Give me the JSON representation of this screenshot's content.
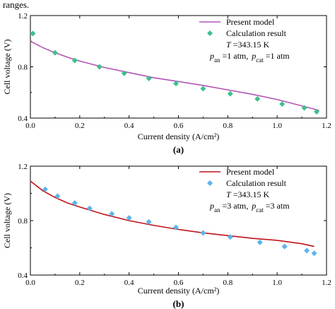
{
  "header_fragment": "ranges.",
  "chart_data": [
    {
      "type": "line",
      "panel_label": "(a)",
      "xlabel": "Current density (A/cm²)",
      "ylabel": "Cell voltage (V)",
      "xlim": [
        0.0,
        1.2
      ],
      "ylim": [
        0.4,
        1.2
      ],
      "x_ticks": [
        0.0,
        0.2,
        0.4,
        0.6,
        0.8,
        1.0,
        1.2
      ],
      "y_ticks": [
        0.4,
        0.8,
        1.2
      ],
      "x_tick_labels": [
        "0.0",
        "0.2",
        "0.4",
        "0.6",
        "0.8",
        "1.0",
        "1.2"
      ],
      "y_tick_labels": [
        "0.4",
        "0.8",
        "1.2"
      ],
      "legend_position": "top-right",
      "legend_text": {
        "line": "Present model",
        "markers": "Calculation result",
        "temp_var": "T",
        "temp_val": " =343.15 K",
        "p_an": "an",
        "p_an_val": " =1 atm,",
        "p_cat": "cat",
        "p_cat_val": " =1 atm",
        "p_var": "p"
      },
      "series": [
        {
          "name": "Present model",
          "kind": "line",
          "color": "#b455b6",
          "x": [
            0.0,
            0.05,
            0.1,
            0.15,
            0.2,
            0.3,
            0.4,
            0.5,
            0.6,
            0.7,
            0.8,
            0.9,
            1.0,
            1.1,
            1.17
          ],
          "y": [
            1.0,
            0.95,
            0.91,
            0.875,
            0.845,
            0.795,
            0.755,
            0.715,
            0.685,
            0.655,
            0.62,
            0.585,
            0.545,
            0.495,
            0.46
          ]
        },
        {
          "name": "Calculation result",
          "kind": "marker",
          "color": "#3dc08c",
          "x": [
            0.01,
            0.1,
            0.18,
            0.28,
            0.38,
            0.48,
            0.59,
            0.7,
            0.81,
            0.92,
            1.02,
            1.11,
            1.16
          ],
          "y": [
            1.06,
            0.91,
            0.85,
            0.8,
            0.75,
            0.71,
            0.67,
            0.63,
            0.59,
            0.55,
            0.51,
            0.48,
            0.45
          ]
        }
      ]
    },
    {
      "type": "line",
      "panel_label": "(b)",
      "xlabel": "Current density (A/cm²)",
      "ylabel": "Cell voltage (V)",
      "xlim": [
        0.0,
        1.2
      ],
      "ylim": [
        0.4,
        1.2
      ],
      "x_ticks": [
        0.0,
        0.2,
        0.4,
        0.6,
        0.8,
        1.0,
        1.2
      ],
      "y_ticks": [
        0.4,
        0.8,
        1.2
      ],
      "x_tick_labels": [
        "0.0",
        "0.2",
        "0.4",
        "0.6",
        "0.8",
        "1.0",
        "1.2"
      ],
      "y_tick_labels": [
        "0.4",
        "0.8",
        "1.2"
      ],
      "legend_position": "top-right",
      "legend_text": {
        "line": "Present model",
        "markers": "Calculation result",
        "temp_var": "T",
        "temp_val": " =343.15 K",
        "p_an": "an",
        "p_an_val": " =3 atm,",
        "p_cat": "cat",
        "p_cat_val": " =3 atm",
        "p_var": "p"
      },
      "series": [
        {
          "name": "Present model",
          "kind": "line",
          "color": "#c0141c",
          "x": [
            0.0,
            0.05,
            0.1,
            0.15,
            0.2,
            0.3,
            0.4,
            0.5,
            0.6,
            0.7,
            0.8,
            0.9,
            1.0,
            1.1,
            1.15
          ],
          "y": [
            1.09,
            1.02,
            0.97,
            0.93,
            0.9,
            0.845,
            0.8,
            0.765,
            0.735,
            0.71,
            0.69,
            0.67,
            0.655,
            0.63,
            0.61
          ]
        },
        {
          "name": "Calculation result",
          "kind": "marker",
          "color": "#5ab4ea",
          "x": [
            0.06,
            0.11,
            0.18,
            0.24,
            0.33,
            0.4,
            0.48,
            0.59,
            0.7,
            0.81,
            0.93,
            1.03,
            1.12,
            1.15
          ],
          "y": [
            1.03,
            0.98,
            0.93,
            0.89,
            0.85,
            0.82,
            0.79,
            0.75,
            0.71,
            0.68,
            0.64,
            0.61,
            0.58,
            0.56
          ]
        }
      ]
    }
  ]
}
